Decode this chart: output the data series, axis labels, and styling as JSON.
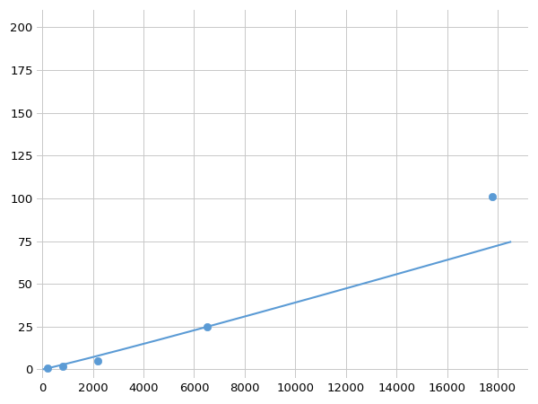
{
  "x": [
    200,
    800,
    2200,
    6500,
    17800
  ],
  "y": [
    1,
    2,
    5,
    25,
    101
  ],
  "line_color": "#5b9bd5",
  "marker_color": "#5b9bd5",
  "marker_size": 6,
  "line_width": 1.5,
  "xlim": [
    -200,
    19200
  ],
  "ylim": [
    -5,
    210
  ],
  "xticks": [
    0,
    2000,
    4000,
    6000,
    8000,
    10000,
    12000,
    14000,
    16000,
    18000
  ],
  "yticks": [
    0,
    25,
    50,
    75,
    100,
    125,
    150,
    175,
    200
  ],
  "grid_color": "#c8c8c8",
  "background_color": "#ffffff",
  "tick_labelsize": 9.5,
  "figsize": [
    6.0,
    4.5
  ],
  "dpi": 100
}
